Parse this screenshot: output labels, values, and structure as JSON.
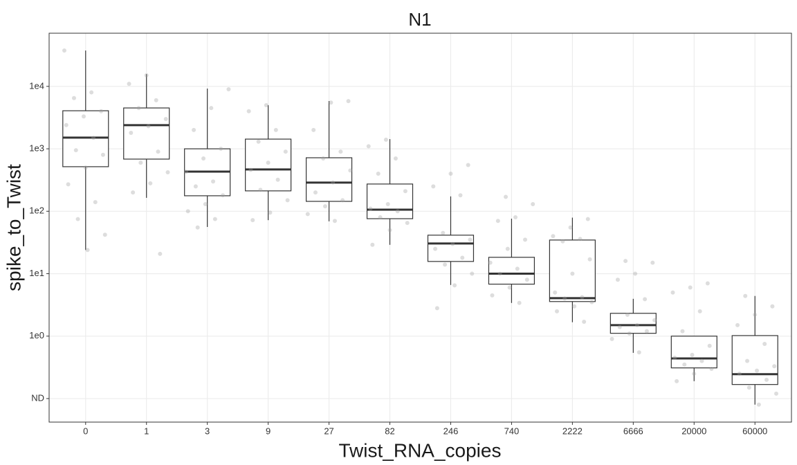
{
  "chart_data": {
    "type": "boxplot",
    "title": "N1",
    "x_label": "Twist_RNA_copies",
    "y_label": "spike_to_Twist",
    "log_y": true,
    "grid": true,
    "box_color": "#333333",
    "box_fill": "#ffffff",
    "point_color": "#9e9e9e",
    "ylim": [
      0.042,
      71000
    ],
    "yticks": [
      {
        "value": 0.1,
        "label": "ND"
      },
      {
        "value": 1,
        "label": "1e0"
      },
      {
        "value": 10,
        "label": "1e1"
      },
      {
        "value": 100,
        "label": "1e2"
      },
      {
        "value": 1000,
        "label": "1e3"
      },
      {
        "value": 10000,
        "label": "1e4"
      }
    ],
    "categories": [
      "0",
      "1",
      "3",
      "9",
      "27",
      "82",
      "246",
      "740",
      "2222",
      "6666",
      "20000",
      "60000"
    ],
    "boxes": [
      {
        "whisker_low": 24,
        "q1": 517,
        "median": 1510,
        "q3": 4070,
        "whisker_high": 37500
      },
      {
        "whisker_low": 164,
        "q1": 684,
        "median": 2390,
        "q3": 4510,
        "whisker_high": 15700
      },
      {
        "whisker_low": 56,
        "q1": 177,
        "median": 432,
        "q3": 1000,
        "whisker_high": 9220
      },
      {
        "whisker_low": 72,
        "q1": 212,
        "median": 467,
        "q3": 1430,
        "whisker_high": 5000
      },
      {
        "whisker_low": 69,
        "q1": 144,
        "median": 288,
        "q3": 719,
        "whisker_high": 5820
      },
      {
        "whisker_low": 29,
        "q1": 76,
        "median": 106,
        "q3": 273,
        "whisker_high": 1430
      },
      {
        "whisker_low": 6.6,
        "q1": 15.7,
        "median": 30.5,
        "q3": 41.4,
        "whisker_high": 173
      },
      {
        "whisker_low": 3.4,
        "q1": 6.8,
        "median": 10,
        "q3": 18.3,
        "whisker_high": 76
      },
      {
        "whisker_low": 1.67,
        "q1": 3.58,
        "median": 4.06,
        "q3": 34.6,
        "whisker_high": 79
      },
      {
        "whisker_low": 0.54,
        "q1": 1.11,
        "median": 1.5,
        "q3": 2.32,
        "whisker_high": 3.96
      },
      {
        "whisker_low": 0.19,
        "q1": 0.31,
        "median": 0.44,
        "q3": 1.0,
        "whisker_high": 1.0
      },
      {
        "whisker_low": 0.08,
        "q1": 0.168,
        "median": 0.246,
        "q3": 1.02,
        "whisker_high": 4.4
      }
    ],
    "points": [
      [
        37500,
        8000,
        6500,
        4000,
        3300,
        2400,
        1500,
        950,
        800,
        500,
        270,
        140,
        75,
        42,
        24
      ],
      [
        15000,
        11000,
        6000,
        4500,
        3000,
        2300,
        1800,
        900,
        600,
        420,
        280,
        200,
        20.8
      ],
      [
        9000,
        4500,
        2000,
        1000,
        700,
        430,
        300,
        250,
        180,
        130,
        100,
        75,
        55
      ],
      [
        5000,
        4000,
        2000,
        1300,
        900,
        600,
        460,
        320,
        220,
        150,
        95,
        72
      ],
      [
        5800,
        5500,
        2000,
        900,
        700,
        450,
        290,
        200,
        150,
        120,
        90,
        70
      ],
      [
        1400,
        1100,
        700,
        400,
        210,
        130,
        110,
        100,
        80,
        65,
        50,
        29
      ],
      [
        550,
        400,
        250,
        180,
        45,
        35,
        30,
        25,
        18,
        14,
        10,
        6.5,
        2.8
      ],
      [
        170,
        130,
        80,
        70,
        35,
        25,
        15,
        12,
        10,
        8,
        6,
        4.5,
        3.4
      ],
      [
        75,
        55,
        40,
        36,
        33,
        17,
        10,
        5,
        4.2,
        4,
        3.5,
        3,
        2.5,
        1.7
      ],
      [
        16,
        15,
        10,
        8,
        3.9,
        2.2,
        1.8,
        1.5,
        1.4,
        1.2,
        1.1,
        0.9,
        0.55
      ],
      [
        7,
        6,
        5,
        2.5,
        1.2,
        0.7,
        0.5,
        0.45,
        0.4,
        0.35,
        0.3,
        0.25,
        0.19
      ],
      [
        4.4,
        3,
        2.2,
        1.5,
        0.75,
        0.4,
        0.33,
        0.28,
        0.25,
        0.2,
        0.15,
        0.12,
        0.08
      ]
    ]
  }
}
